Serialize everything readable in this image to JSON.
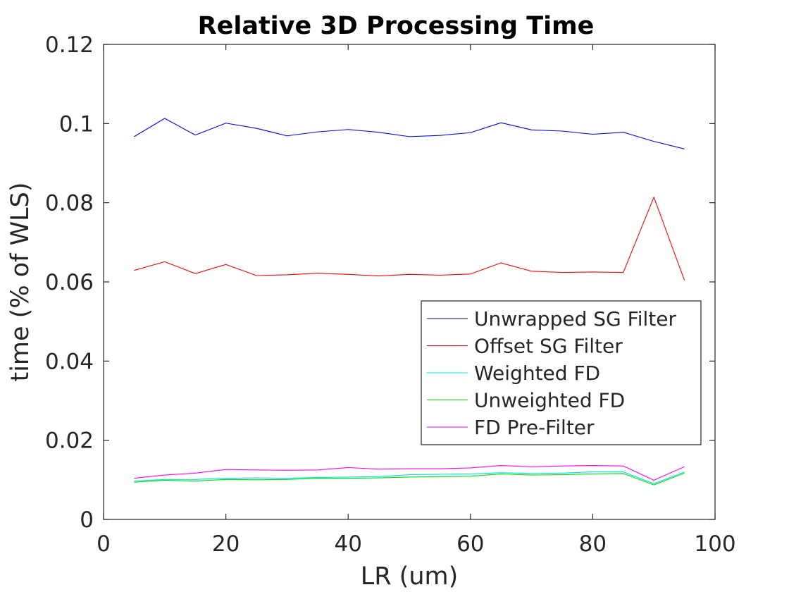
{
  "chart_data": {
    "type": "line",
    "title": "Relative 3D Processing Time",
    "xlabel": "LR (um)",
    "ylabel": "time (% of WLS)",
    "xlim": [
      0,
      100
    ],
    "ylim": [
      0,
      0.12
    ],
    "xticks": [
      0,
      20,
      40,
      60,
      80,
      100
    ],
    "xtick_labels": [
      "0",
      "20",
      "40",
      "60",
      "80",
      "100"
    ],
    "yticks": [
      0,
      0.02,
      0.04,
      0.06,
      0.08,
      0.1,
      0.12
    ],
    "ytick_labels": [
      "0",
      "0.02",
      "0.04",
      "0.06",
      "0.08",
      "0.1",
      "0.12"
    ],
    "grid": false,
    "legend_position": "bottom-right",
    "x": [
      5,
      10,
      15,
      20,
      25,
      30,
      35,
      40,
      45,
      50,
      55,
      60,
      65,
      70,
      75,
      80,
      85,
      90,
      95
    ],
    "series": [
      {
        "name": "Unwrapped SG Filter",
        "color": "#0000ff",
        "legend_color": "#000080",
        "values": [
          0.0967,
          0.1013,
          0.0971,
          0.1001,
          0.0988,
          0.0969,
          0.0979,
          0.0985,
          0.0978,
          0.0967,
          0.097,
          0.0977,
          0.1002,
          0.0984,
          0.0981,
          0.0973,
          0.0978,
          0.0955,
          0.0936
        ]
      },
      {
        "name": "Offset SG Filter",
        "color": "#ff0000",
        "legend_color": "#ff0000",
        "values": [
          0.0629,
          0.0651,
          0.0621,
          0.0644,
          0.0616,
          0.0618,
          0.0622,
          0.0619,
          0.0615,
          0.0619,
          0.0617,
          0.062,
          0.0648,
          0.0627,
          0.0624,
          0.0625,
          0.0624,
          0.0814,
          0.0604
        ]
      },
      {
        "name": "Weighted FD",
        "color": "#00e5e5",
        "legend_color": "#00e5e5",
        "values": [
          0.0097,
          0.0101,
          0.0101,
          0.0104,
          0.0105,
          0.0104,
          0.0106,
          0.0107,
          0.0108,
          0.0113,
          0.0114,
          0.0115,
          0.0118,
          0.0116,
          0.0117,
          0.012,
          0.012,
          0.009,
          0.012
        ]
      },
      {
        "name": "Unweighted FD",
        "color": "#00e000",
        "legend_color": "#00e000",
        "values": [
          0.0094,
          0.0099,
          0.0097,
          0.0101,
          0.01,
          0.0101,
          0.0104,
          0.0104,
          0.0105,
          0.0107,
          0.0108,
          0.0109,
          0.0115,
          0.0112,
          0.0113,
          0.0115,
          0.0116,
          0.0087,
          0.0117
        ]
      },
      {
        "name": "FD Pre-Filter",
        "color": "#ff00ff",
        "legend_color": "#ff00ff",
        "values": [
          0.0104,
          0.0112,
          0.0117,
          0.0126,
          0.0125,
          0.0124,
          0.0125,
          0.0131,
          0.0127,
          0.0128,
          0.0128,
          0.013,
          0.0136,
          0.0133,
          0.0135,
          0.0136,
          0.0135,
          0.0099,
          0.0133
        ]
      }
    ]
  }
}
